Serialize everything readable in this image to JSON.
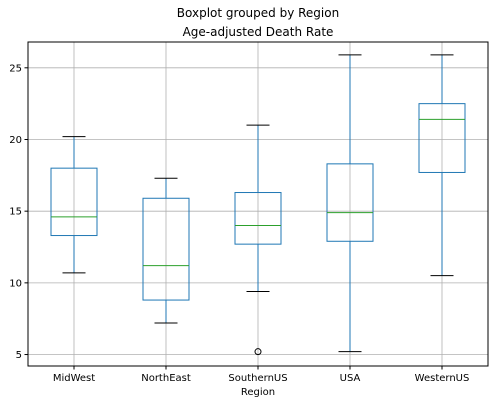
{
  "chart_data": {
    "type": "boxplot",
    "suptitle": "Boxplot grouped by Region",
    "title": "Age-adjusted Death Rate",
    "xlabel": "Region",
    "ylabel": "",
    "ylim": [
      4.2,
      26.8
    ],
    "yticks": [
      5,
      10,
      15,
      20,
      25
    ],
    "grid": true,
    "colors": {
      "box": "#1f77b4",
      "median": "#2ca02c",
      "whisker": "#1f77b4",
      "cap": "#000000",
      "grid": "#b0b0b0",
      "frame": "#000000"
    },
    "categories": [
      "MidWest",
      "NorthEast",
      "SouthernUS",
      "USA",
      "WesternUS"
    ],
    "boxes": [
      {
        "name": "MidWest",
        "whislo": 10.7,
        "q1": 13.3,
        "med": 14.6,
        "q3": 18.0,
        "whishi": 20.2,
        "fliers": []
      },
      {
        "name": "NorthEast",
        "whislo": 7.2,
        "q1": 8.8,
        "med": 11.2,
        "q3": 15.9,
        "whishi": 17.3,
        "fliers": []
      },
      {
        "name": "SouthernUS",
        "whislo": 9.4,
        "q1": 12.7,
        "med": 14.0,
        "q3": 16.3,
        "whishi": 21.0,
        "fliers": [
          5.2
        ]
      },
      {
        "name": "USA",
        "whislo": 5.2,
        "q1": 12.9,
        "med": 14.9,
        "q3": 18.3,
        "whishi": 25.9,
        "fliers": []
      },
      {
        "name": "WesternUS",
        "whislo": 10.5,
        "q1": 17.7,
        "med": 21.4,
        "q3": 22.5,
        "whishi": 25.9,
        "fliers": []
      }
    ]
  }
}
